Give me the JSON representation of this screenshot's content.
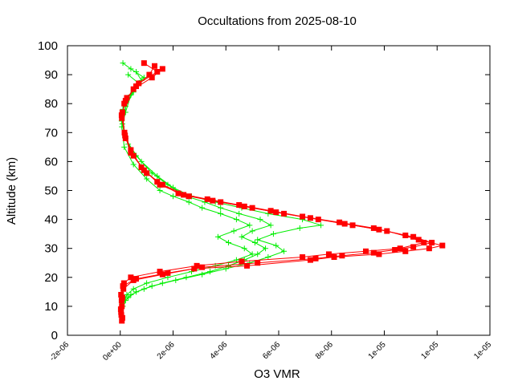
{
  "chart_data": {
    "type": "scatter",
    "title": "Occultations from 2025-08-10",
    "xlabel": "O3 VMR",
    "ylabel": "Altitude (km)",
    "xlim": [
      -2e-06,
      1.4e-05
    ],
    "ylim": [
      0,
      100
    ],
    "x_ticks": [
      -2e-06,
      0,
      2e-06,
      4e-06,
      6e-06,
      8e-06,
      1e-05,
      1.2e-05,
      1.4e-05
    ],
    "x_tick_labels": [
      "-2e-06",
      "0e+00",
      "2e-06",
      "4e-06",
      "6e-06",
      "8e-06",
      "1e-05",
      "1e-05",
      "1e-05"
    ],
    "y_ticks": [
      0,
      10,
      20,
      30,
      40,
      50,
      60,
      70,
      80,
      90,
      100
    ],
    "y_tick_labels": [
      "0",
      "10",
      "20",
      "30",
      "40",
      "50",
      "60",
      "70",
      "80",
      "90",
      "100"
    ],
    "grid": false,
    "legend": "none",
    "series": [
      {
        "color": "#ff0000",
        "marker": "square",
        "profiles": [
          {
            "x": [
              6e-08,
              3e-08,
              5e-08,
              1.2e-07,
              5e-07,
              1.6e-06,
              2.8e-06,
              4.8e-06,
              7.2e-06,
              8.1e-06,
              9.8e-06,
              1.08e-05,
              1.17e-05,
              1.22e-05,
              1.13e-05,
              1.01e-05,
              8.8e-06,
              7.5e-06,
              6.2e-06,
              5e-06,
              3.8e-06,
              2.6e-06,
              1.6e-06,
              1e-06,
              5e-07,
              2e-07,
              6e-08,
              1.5e-07,
              5e-07,
              1.2e-06,
              1.6e-06
            ],
            "y": [
              5,
              8,
              12,
              16,
              19,
              21,
              23,
              24,
              26,
              27,
              28,
              29,
              30,
              31,
              33,
              36,
              38,
              40,
              42,
              44,
              46,
              48,
              52,
              56,
              62,
              68,
              75,
              80,
              85,
              89,
              92
            ]
          },
          {
            "x": [
              8e-08,
              2e-08,
              8e-08,
              1e-07,
              6e-07,
              1.8e-06,
              3.1e-06,
              5.2e-06,
              7.4e-06,
              8.4e-06,
              9.6e-06,
              1.04e-05,
              1.11e-05,
              1.18e-05,
              1.11e-05,
              9.8e-06,
              8.5e-06,
              7.2e-06,
              5.9e-06,
              4.7e-06,
              3.5e-06,
              2.4e-06,
              1.5e-06,
              9e-07,
              4e-07,
              1.8e-07,
              5e-08,
              2e-07,
              6e-07,
              1.1e-06,
              1.3e-06
            ],
            "y": [
              6,
              9,
              13,
              17,
              19.5,
              21.5,
              23.5,
              25,
              26.5,
              27.5,
              28.5,
              29.5,
              30.5,
              32,
              34,
              36.5,
              38.5,
              40.5,
              42.5,
              44.5,
              46.5,
              48.5,
              52,
              57,
              63,
              69,
              76,
              81,
              86,
              90,
              93
            ]
          },
          {
            "x": [
              4e-08,
              6e-08,
              3e-08,
              1.4e-07,
              4e-07,
              1.5e-06,
              2.9e-06,
              4.6e-06,
              6.9e-06,
              7.9e-06,
              9.3e-06,
              1.06e-05,
              1.15e-05,
              1.08e-05,
              9.6e-06,
              8.3e-06,
              6.9e-06,
              5.7e-06,
              4.5e-06,
              3.3e-06,
              2.2e-06,
              1.4e-06,
              8e-07,
              4e-07,
              1.6e-07,
              8e-08,
              2.5e-07,
              7e-07,
              1.4e-06,
              9e-07
            ],
            "y": [
              7,
              10,
              14,
              18,
              20,
              22,
              24,
              25.5,
              27,
              28,
              29,
              30,
              32,
              34.5,
              37,
              39,
              41,
              43,
              45,
              47,
              49,
              53,
              58,
              64,
              70,
              77,
              82,
              87,
              91,
              94
            ]
          }
        ]
      },
      {
        "color": "#00ee00",
        "marker": "plus",
        "profiles": [
          {
            "x": [
              1e-07,
              2e-07,
              4e-07,
              9e-07,
              1.6e-06,
              2.5e-06,
              3.4e-06,
              4.1e-06,
              4.7e-06,
              5.2e-06,
              5.5e-06,
              5.1e-06,
              4.6e-06,
              5e-06,
              5.7e-06,
              5.3e-06,
              4.5e-06,
              3.8e-06,
              3.2e-06,
              2.5e-06,
              1.8e-06,
              1.2e-06,
              6e-07,
              2e-07,
              5e-08,
              1e-07,
              3e-07,
              6e-07,
              9e-07,
              4e-07,
              1e-07
            ],
            "y": [
              10,
              12,
              14,
              16,
              18,
              20,
              22,
              24,
              26,
              28,
              30,
              32,
              34,
              36,
              38,
              40,
              42,
              44,
              46,
              48,
              52,
              56,
              62,
              68,
              74,
              78,
              82,
              86,
              89,
              92,
              94
            ]
          },
          {
            "x": [
              8e-08,
              3e-07,
              6e-07,
              1.2e-06,
              2.1e-06,
              3.1e-06,
              4e-06,
              4.9e-06,
              5.6e-06,
              6.2e-06,
              5.9e-06,
              5.2e-06,
              5.8e-06,
              6.8e-06,
              7.6e-06,
              6.9e-06,
              5.6e-06,
              4.6e-06,
              3.6e-06,
              2.7e-06,
              2e-06,
              1.4e-06,
              8e-07,
              3e-07,
              8e-08,
              2e-07,
              5e-07,
              8e-07,
              6e-07
            ],
            "y": [
              11,
              13,
              15,
              17,
              19,
              21,
              23,
              25,
              27,
              29,
              31,
              33,
              35,
              37,
              38,
              40,
              42,
              44,
              46,
              48,
              51,
              55,
              60,
              66,
              73,
              79,
              84,
              88,
              91
            ]
          },
          {
            "x": [
              1.2e-07,
              2.5e-07,
              5e-07,
              1e-06,
              1.8e-06,
              2.7e-06,
              3.6e-06,
              4.4e-06,
              5e-06,
              4.7e-06,
              4.1e-06,
              3.7e-06,
              4.3e-06,
              4.9e-06,
              4.4e-06,
              3.8e-06,
              3.1e-06,
              2.6e-06,
              2e-06,
              1.5e-06,
              1e-06,
              5e-07,
              1.5e-07,
              6e-08,
              2e-07,
              4e-07,
              7e-07,
              3e-07
            ],
            "y": [
              12,
              14,
              16,
              18,
              20,
              22,
              24,
              26,
              28,
              30,
              32,
              34,
              36,
              38,
              40,
              42,
              44,
              46,
              48,
              50,
              54,
              59,
              65,
              72,
              77,
              83,
              87,
              90
            ]
          }
        ]
      }
    ]
  }
}
